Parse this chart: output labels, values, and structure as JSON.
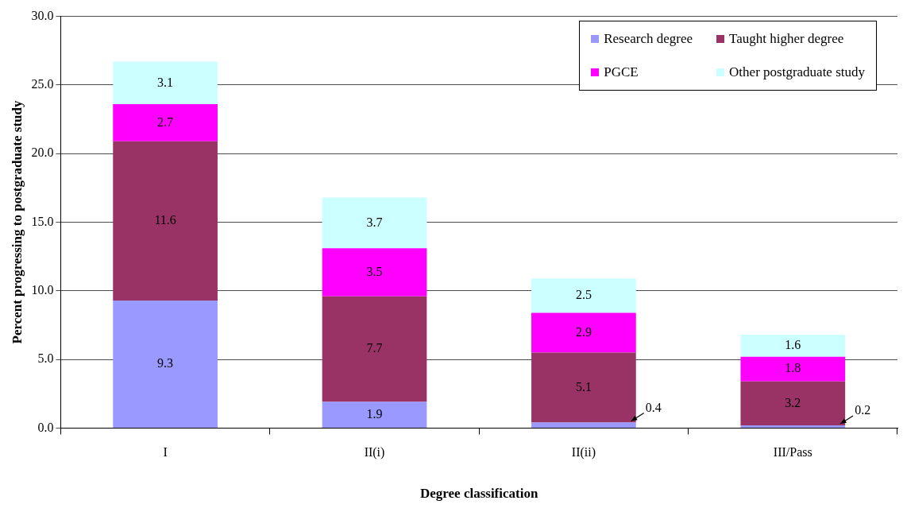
{
  "chart_data": {
    "type": "bar",
    "stacked": true,
    "xlabel": "Degree classification",
    "ylabel": "Percent progressing to postgraduate study",
    "categories": [
      "I",
      "II(i)",
      "II(ii)",
      "III/Pass"
    ],
    "series": [
      {
        "name": "Research degree",
        "color": "#9999ff",
        "values": [
          9.3,
          1.9,
          0.4,
          0.2
        ]
      },
      {
        "name": "Taught higher degree",
        "color": "#993366",
        "values": [
          11.6,
          7.7,
          5.1,
          3.2
        ]
      },
      {
        "name": "PGCE",
        "color": "#ff00ff",
        "values": [
          2.7,
          3.5,
          2.9,
          1.8
        ]
      },
      {
        "name": "Other postgraduate study",
        "color": "#ccffff",
        "values": [
          3.1,
          3.7,
          2.5,
          1.6
        ]
      }
    ],
    "ylim": [
      0,
      30
    ],
    "yticks": [
      {
        "value": 0,
        "label": "0.0"
      },
      {
        "value": 5,
        "label": "5.0"
      },
      {
        "value": 10,
        "label": "10.0"
      },
      {
        "value": 15,
        "label": "15.0"
      },
      {
        "value": 20,
        "label": "20.0"
      },
      {
        "value": 25,
        "label": "25.0"
      },
      {
        "value": 30,
        "label": "30.0"
      }
    ],
    "grid": "y",
    "legend": "top right",
    "data_labels": true
  }
}
